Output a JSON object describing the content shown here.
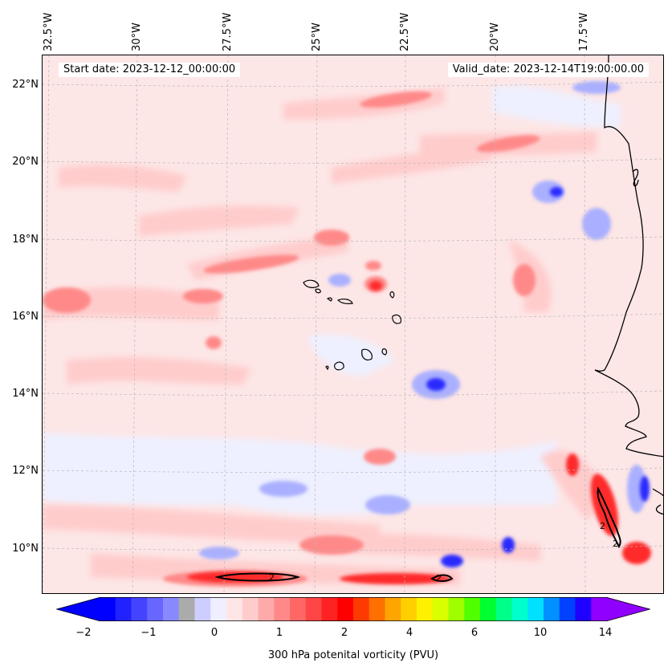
{
  "map": {
    "lon_labels": [
      "32.5°W",
      "30°W",
      "27.5°W",
      "25°W",
      "22.5°W",
      "20°W",
      "17.5°W"
    ],
    "lat_labels": [
      "22°N",
      "20°N",
      "18°N",
      "16°N",
      "14°N",
      "12°N",
      "10°N"
    ],
    "start_date": "Start date: 2023-12-12_00:00:00",
    "valid_date": "Valid_date: 2023-12-14T19:00:00.00",
    "contour_labels": [
      "2",
      "2",
      "2",
      "2"
    ],
    "colors": {
      "background": "#fde6e6",
      "coast": "#000000",
      "grid": "#b8b8b8"
    }
  },
  "colorbar": {
    "tick_labels": [
      "−2",
      "−1",
      "0",
      "1",
      "2",
      "4",
      "6",
      "10",
      "14"
    ],
    "title": "300 hPa potenital vorticity (PVU)",
    "colors": [
      "#0000ff",
      "#2222ff",
      "#4444ff",
      "#6767ff",
      "#8989ff",
      "#abababff",
      "#cdcdff",
      "#efefff",
      "#ffe6e6",
      "#ffcccc",
      "#ffaaaa",
      "#ff8989",
      "#ff6767",
      "#ff4545",
      "#ff2222",
      "#ff0000",
      "#ff3a00",
      "#ff7000",
      "#ffa500",
      "#ffcf00",
      "#fff000",
      "#d9ff00",
      "#9fff00",
      "#50ff00",
      "#00ff30",
      "#00ff88",
      "#00ffcc",
      "#00e0ff",
      "#0090ff",
      "#0040ff",
      "#2000ff",
      "#9000ff"
    ]
  }
}
